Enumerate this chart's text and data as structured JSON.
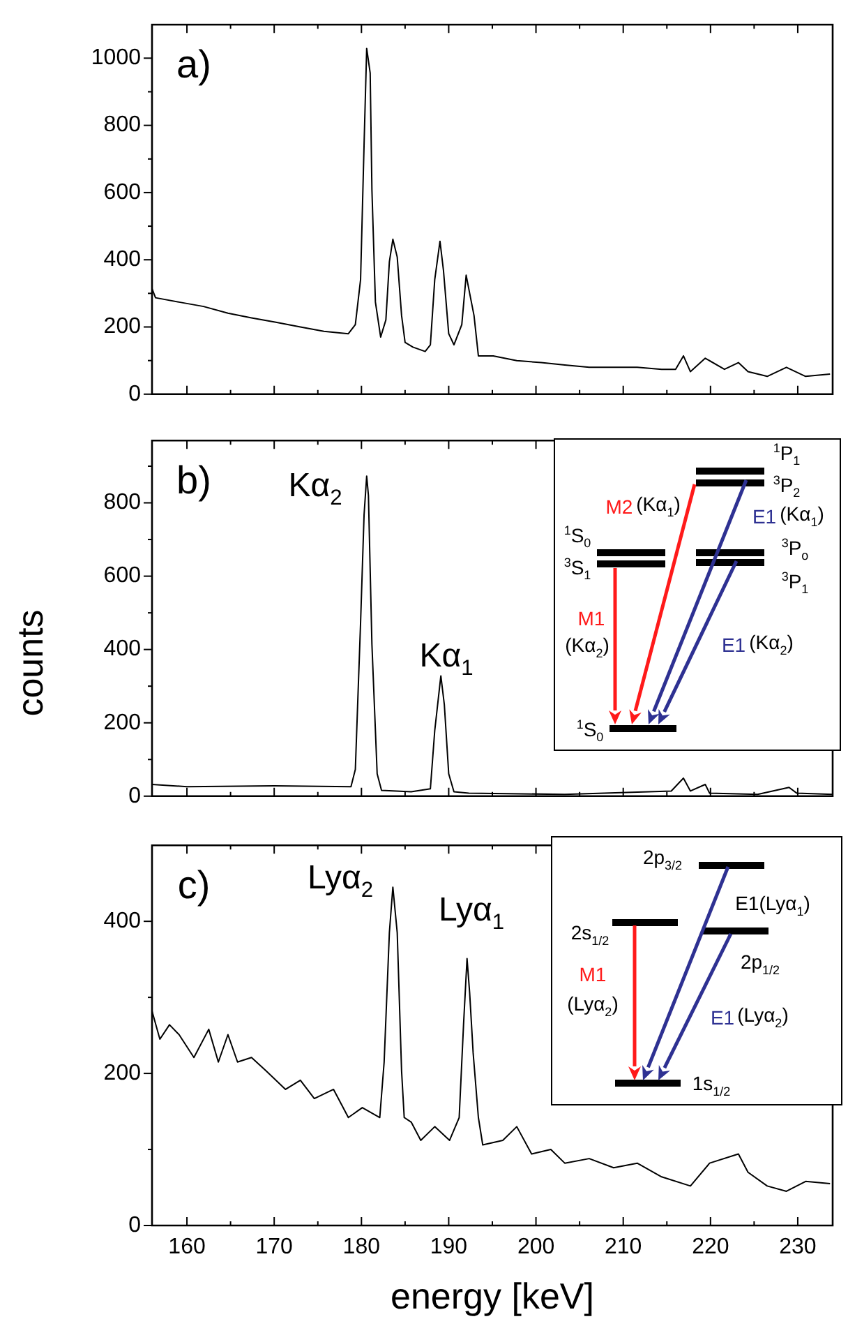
{
  "chart_data": [
    {
      "type": "line",
      "annotations": [
        "a)"
      ],
      "xlim": [
        156,
        234
      ],
      "xticks": [
        160,
        {
          "value": 165,
          "label": null
        },
        170,
        {
          "value": 175,
          "label": null
        },
        180,
        {
          "value": 185,
          "label": null
        },
        190,
        {
          "value": 195,
          "label": null
        },
        200,
        {
          "value": 205,
          "label": null
        },
        210,
        {
          "value": 215,
          "label": null
        },
        220,
        {
          "value": 225,
          "label": null
        },
        230
      ],
      "ylim": [
        0,
        1100
      ],
      "yticks": [
        0,
        {
          "value": 100,
          "label": null
        },
        200,
        {
          "value": 300,
          "label": null
        },
        400,
        {
          "value": 500,
          "label": null
        },
        600,
        {
          "value": 700,
          "label": null
        },
        800,
        {
          "value": 900,
          "label": null
        },
        1000
      ],
      "tick_labels": "y",
      "marker": "none",
      "line_style": "solid",
      "series": [
        {
          "color": "#000000",
          "x": [
            156,
            156.4,
            159.1,
            161.9,
            164.7,
            167.4,
            170.2,
            173,
            175.7,
            178.5,
            179.3,
            179.9,
            180.3,
            180.6,
            181,
            181.2,
            181.6,
            182.2,
            182.8,
            183.2,
            183.6,
            184.1,
            184.6,
            185,
            185.9,
            187.3,
            187.9,
            188.4,
            189,
            189.4,
            190,
            190.6,
            191.5,
            192,
            192.5,
            192.9,
            193.4,
            195.1,
            197.8,
            200.6,
            203.3,
            206.1,
            208.9,
            211.6,
            214.4,
            216,
            216.9,
            217.7,
            219.4,
            221.6,
            223.2,
            224.3,
            226.5,
            228.7,
            230.9,
            233.7
          ],
          "values": [
            314,
            287,
            274,
            261,
            241,
            227,
            214,
            200,
            187,
            180,
            207,
            341,
            742,
            1029,
            956,
            608,
            274,
            170,
            221,
            394,
            461,
            408,
            234,
            154,
            140,
            127,
            147,
            341,
            455,
            368,
            180,
            147,
            207,
            354,
            287,
            234,
            114,
            114,
            100,
            94,
            87,
            80,
            80,
            80,
            74,
            74,
            114,
            67,
            107,
            74,
            94,
            67,
            53,
            80,
            53,
            60
          ]
        }
      ]
    },
    {
      "type": "line",
      "ylabel": "counts",
      "annotations": [
        "b)",
        "Kα$_{2}$",
        "Kα$_{1}$",
        "$^{1}$P$_{1}$",
        "$^{3}$P$_{2}$",
        "M2",
        "(Kα$_{1}$)",
        "E1",
        "(Kα$_{1}$)",
        "$^{1}$S$_{0}$",
        "$^{3}$S$_{1}$",
        "$^{3}$P$_{o}$",
        "$^{3}$P$_{1}$",
        "M1",
        "(Kα$_{2}$)",
        "E1",
        "(Kα$_{2}$)",
        "$^{1}$S$_{0}$"
      ],
      "xlim": [
        156,
        234
      ],
      "xticks": [
        160,
        {
          "value": 165,
          "label": null
        },
        170,
        {
          "value": 175,
          "label": null
        },
        180,
        {
          "value": 185,
          "label": null
        },
        190,
        {
          "value": 195,
          "label": null
        },
        200,
        {
          "value": 205,
          "label": null
        },
        210,
        {
          "value": 215,
          "label": null
        },
        220,
        {
          "value": 225,
          "label": null
        },
        230
      ],
      "ylim": [
        0,
        970
      ],
      "yticks": [
        0,
        {
          "value": 100,
          "label": null
        },
        200,
        {
          "value": 300,
          "label": null
        },
        400,
        {
          "value": 500,
          "label": null
        },
        600,
        {
          "value": 700,
          "label": null
        },
        800,
        {
          "value": 900,
          "label": null
        }
      ],
      "tick_labels": "y",
      "marker": "none",
      "line_style": "solid",
      "series": [
        {
          "color": "#000000",
          "x": [
            156,
            160,
            170,
            178.8,
            179.3,
            179.9,
            180.3,
            180.6,
            180.8,
            181.2,
            181.8,
            182.3,
            185.7,
            187.9,
            188.4,
            189.1,
            189.5,
            190,
            190.6,
            192.3,
            203.3,
            215.5,
            216.9,
            217.7,
            219.4,
            219.9,
            225.4,
            229,
            229.9,
            234
          ],
          "values": [
            32,
            26,
            28,
            26,
            73,
            473,
            767,
            873,
            820,
            414,
            61,
            16,
            12,
            20,
            179,
            328,
            249,
            61,
            12,
            8,
            5,
            14,
            49,
            14,
            32,
            8,
            5,
            24,
            8,
            5
          ]
        }
      ]
    },
    {
      "type": "line",
      "xlabel": "energy [keV]",
      "annotations": [
        "c)",
        "Lyα$_{2}$",
        "Lyα$_{1}$",
        "2p$_{3/2}$",
        "E1(Lyα$_{1}$)",
        "2s$_{1/2}$",
        "2p$_{1/2}$",
        "M1",
        "(Lyα$_{2}$)",
        "E1",
        "(Lyα$_{2}$)",
        "1s$_{1/2}$"
      ],
      "xlim": [
        156,
        234
      ],
      "xticks": [
        160,
        {
          "value": 165,
          "label": null
        },
        170,
        {
          "value": 175,
          "label": null
        },
        180,
        {
          "value": 185,
          "label": null
        },
        190,
        {
          "value": 195,
          "label": null
        },
        200,
        {
          "value": 205,
          "label": null
        },
        210,
        {
          "value": 215,
          "label": null
        },
        220,
        {
          "value": 225,
          "label": null
        },
        230
      ],
      "ylim": [
        0,
        500
      ],
      "yticks": [
        0,
        {
          "value": 100,
          "label": null
        },
        200,
        {
          "value": 300,
          "label": null
        },
        400
      ],
      "marker": "none",
      "line_style": "solid",
      "series": [
        {
          "color": "#000000",
          "x": [
            156,
            156.9,
            158,
            159.1,
            160.8,
            162.5,
            163.6,
            164.7,
            165.8,
            167.4,
            169.1,
            171.3,
            173,
            174.6,
            176.8,
            178.5,
            180.1,
            182.1,
            182.6,
            183.2,
            183.6,
            184.1,
            184.6,
            184.9,
            185.7,
            186.8,
            188.4,
            190.1,
            191.2,
            191.7,
            192.1,
            192.4,
            192.8,
            193.4,
            193.9,
            196.2,
            197.8,
            199.5,
            201.7,
            203.3,
            206.1,
            208.9,
            211.6,
            214.4,
            217.7,
            219.9,
            223.2,
            224.3,
            226.5,
            228.7,
            230.9,
            233.7
          ],
          "values": [
            282,
            245,
            264,
            251,
            221,
            258,
            215,
            251,
            215,
            221,
            203,
            179,
            191,
            167,
            179,
            142,
            155,
            142,
            215,
            385,
            445,
            385,
            203,
            142,
            136,
            112,
            130,
            112,
            142,
            264,
            351,
            306,
            227,
            142,
            106,
            112,
            130,
            94,
            100,
            82,
            88,
            76,
            82,
            64,
            52,
            82,
            94,
            70,
            52,
            45,
            58,
            55
          ]
        }
      ]
    }
  ]
}
